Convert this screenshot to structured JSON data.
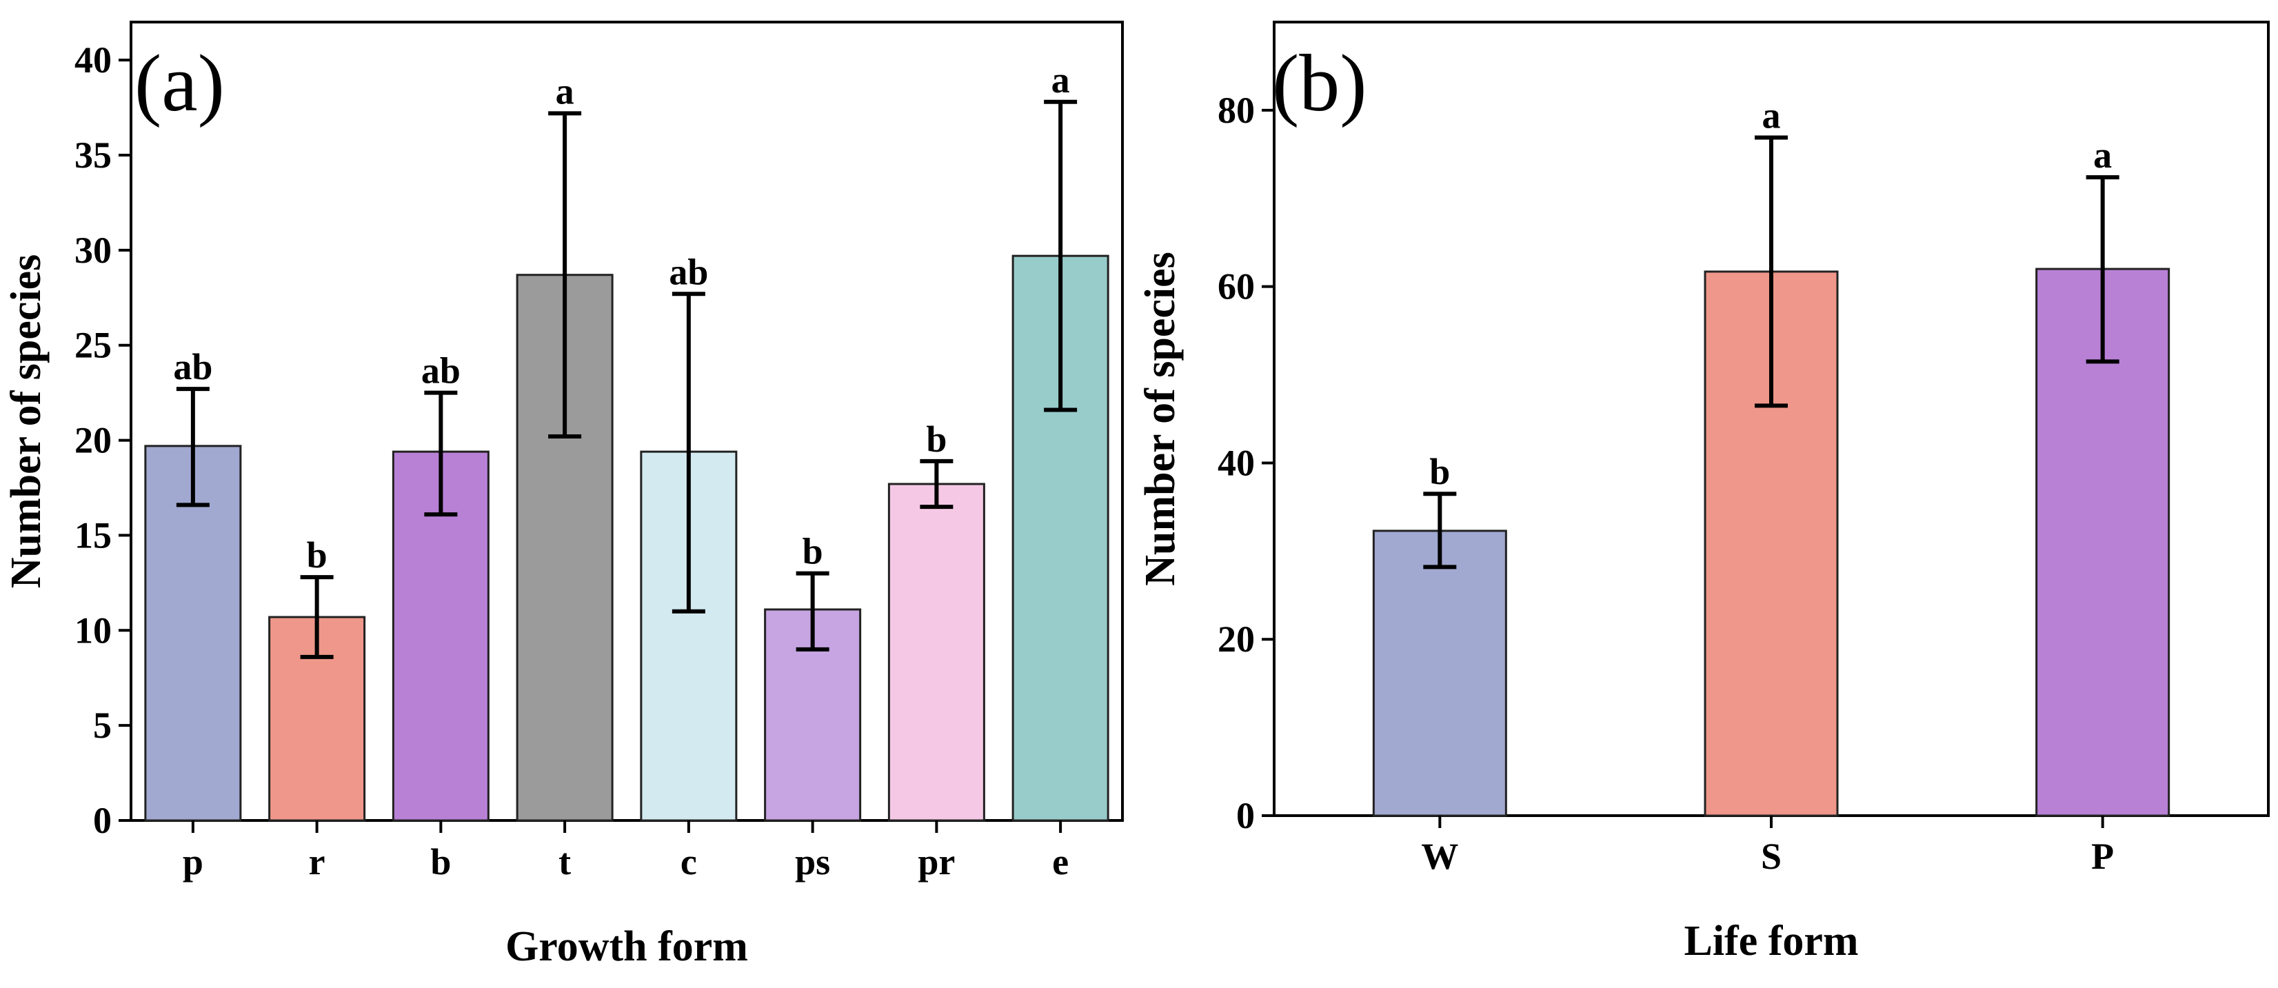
{
  "chart_data": [
    {
      "type": "bar",
      "panel_label": "(a)",
      "xlabel": "Growth form",
      "ylabel": "Number of species",
      "ylim": [
        0,
        42
      ],
      "yticks": [
        "0",
        "5",
        "10",
        "15",
        "20",
        "25",
        "30",
        "35",
        "40"
      ],
      "categories": [
        "p",
        "r",
        "b",
        "t",
        "c",
        "ps",
        "pr",
        "e"
      ],
      "values": [
        19.7,
        10.7,
        19.4,
        28.7,
        19.4,
        11.1,
        17.7,
        29.7
      ],
      "error_low": [
        16.6,
        8.6,
        16.1,
        20.2,
        11.0,
        9.0,
        16.5,
        21.6
      ],
      "error_high": [
        22.7,
        12.8,
        22.5,
        37.2,
        27.7,
        13.0,
        18.9,
        37.8
      ],
      "significance": [
        "ab",
        "b",
        "ab",
        "a",
        "ab",
        "b",
        "b",
        "a"
      ],
      "colors": [
        "#a1a9d1",
        "#ef978a",
        "#b881d6",
        "#9b9b9b",
        "#d4eaf1",
        "#c6a5e2",
        "#f5c9e5",
        "#98cccb"
      ]
    },
    {
      "type": "bar",
      "panel_label": "(b)",
      "xlabel": "Life form",
      "ylabel": "Number of species",
      "ylim": [
        0,
        90
      ],
      "yticks": [
        "0",
        "20",
        "40",
        "60",
        "80"
      ],
      "categories": [
        "W",
        "S",
        "P"
      ],
      "values": [
        32.3,
        61.7,
        62.0
      ],
      "error_low": [
        28.2,
        46.5,
        51.5
      ],
      "error_high": [
        36.5,
        76.9,
        72.4
      ],
      "significance": [
        "b",
        "a",
        "a"
      ],
      "colors": [
        "#a1a9d1",
        "#ef978a",
        "#b881d6"
      ]
    }
  ]
}
